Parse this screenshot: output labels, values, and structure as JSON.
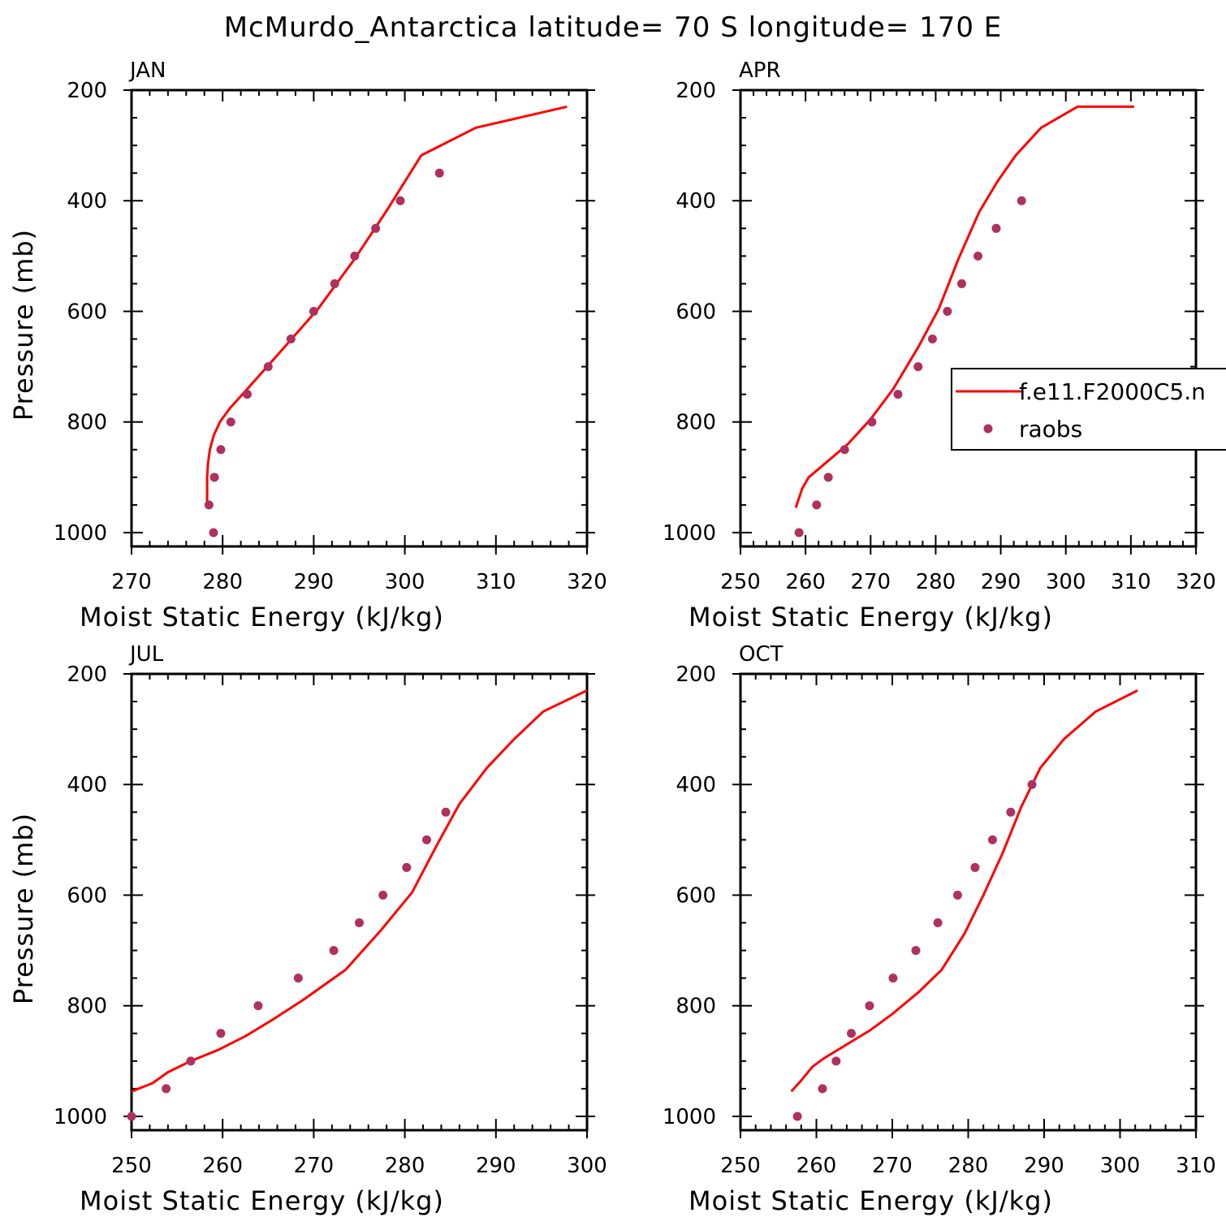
{
  "title": "McMurdo_Antarctica  latitude= 70 S longitude= 170 E",
  "colors": {
    "model": "#ff0000",
    "obs": "#b03060",
    "axis": "#000000"
  },
  "legend": {
    "entries": [
      {
        "label": "f.e11.F2000C5.n",
        "style": "line",
        "color": "#ff0000"
      },
      {
        "label": "raobs",
        "style": "dot",
        "color": "#b03060"
      }
    ],
    "placement": "right, inside APR panel (clipped at figure edge)"
  },
  "chart_data": [
    {
      "type": "line",
      "panel": "JAN",
      "xlabel": "Moist Static Energy (kJ/kg)",
      "ylabel": "Pressure (mb)",
      "xlim": [
        270,
        320
      ],
      "ylim": [
        1025,
        200
      ],
      "xticks": [
        270,
        280,
        290,
        300,
        310,
        320
      ],
      "yticks": [
        200,
        400,
        600,
        800,
        1000
      ],
      "series": [
        {
          "name": "f.e11.F2000C5.n",
          "style": "line",
          "x": [
            278.3,
            278.3,
            278.4,
            278.6,
            279.0,
            279.7,
            280.8,
            283.0,
            286.5,
            290.5,
            294.5,
            298.0,
            301.8,
            307.8,
            317.8
          ],
          "y": [
            950,
            900,
            875,
            850,
            825,
            800,
            775,
            735,
            670,
            595,
            505,
            418,
            318,
            268,
            230
          ]
        },
        {
          "name": "raobs",
          "style": "points",
          "x": [
            279.0,
            278.5,
            279.1,
            279.8,
            280.9,
            282.7,
            285.0,
            287.5,
            290.0,
            292.3,
            294.5,
            296.8,
            299.5,
            303.8
          ],
          "y": [
            1000,
            950,
            900,
            850,
            800,
            750,
            700,
            650,
            600,
            550,
            500,
            450,
            400,
            350
          ]
        }
      ]
    },
    {
      "type": "line",
      "panel": "APR",
      "xlabel": "Moist Static Energy (kJ/kg)",
      "ylabel": "",
      "xlim": [
        250,
        320
      ],
      "ylim": [
        1025,
        200
      ],
      "xticks": [
        250,
        260,
        270,
        280,
        290,
        300,
        310,
        320
      ],
      "yticks": [
        200,
        400,
        600,
        800,
        1000
      ],
      "series": [
        {
          "name": "f.e11.F2000C5.n",
          "style": "line",
          "x": [
            258.5,
            259.5,
            260.5,
            263.0,
            266.5,
            270.0,
            273.5,
            277.3,
            280.5,
            283.5,
            286.7,
            289.5,
            292.3,
            296.2,
            301.8,
            310.5
          ],
          "y": [
            955,
            920,
            900,
            875,
            840,
            795,
            740,
            665,
            595,
            505,
            420,
            365,
            318,
            268,
            230,
            230
          ]
        },
        {
          "name": "raobs",
          "style": "points",
          "x": [
            259.0,
            261.7,
            263.5,
            266.0,
            270.2,
            274.2,
            277.3,
            279.5,
            281.8,
            284.0,
            286.5,
            289.3,
            293.2
          ],
          "y": [
            1000,
            950,
            900,
            850,
            800,
            750,
            700,
            650,
            600,
            550,
            500,
            450,
            400
          ]
        }
      ]
    },
    {
      "type": "line",
      "panel": "JUL",
      "xlabel": "Moist Static Energy (kJ/kg)",
      "ylabel": "Pressure (mb)",
      "xlim": [
        250,
        300
      ],
      "ylim": [
        1025,
        200
      ],
      "xticks": [
        250,
        260,
        270,
        280,
        290,
        300
      ],
      "yticks": [
        200,
        400,
        600,
        800,
        1000
      ],
      "series": [
        {
          "name": "f.e11.F2000C5.n",
          "style": "line",
          "x": [
            250.0,
            252.3,
            254.0,
            256.5,
            259.5,
            262.5,
            265.5,
            268.8,
            273.5,
            277.3,
            280.8,
            283.5,
            286.0,
            289.0,
            292.0,
            295.2,
            300.0
          ],
          "y": [
            955,
            940,
            920,
            900,
            880,
            855,
            825,
            790,
            735,
            665,
            595,
            510,
            435,
            370,
            318,
            268,
            230
          ]
        },
        {
          "name": "raobs",
          "style": "points",
          "x": [
            250.0,
            253.8,
            256.5,
            259.8,
            263.9,
            268.3,
            272.2,
            275.0,
            277.6,
            280.2,
            282.4,
            284.5
          ],
          "y": [
            1000,
            950,
            900,
            850,
            800,
            750,
            700,
            650,
            600,
            550,
            500,
            450
          ]
        }
      ]
    },
    {
      "type": "line",
      "panel": "OCT",
      "xlabel": "Moist Static Energy (kJ/kg)",
      "ylabel": "",
      "xlim": [
        250,
        310
      ],
      "ylim": [
        1025,
        200
      ],
      "xticks": [
        250,
        260,
        270,
        280,
        290,
        300,
        310
      ],
      "yticks": [
        200,
        400,
        600,
        800,
        1000
      ],
      "series": [
        {
          "name": "f.e11.F2000C5.n",
          "style": "line",
          "x": [
            256.7,
            258.0,
            259.5,
            261.0,
            264.0,
            267.0,
            270.0,
            273.5,
            276.5,
            279.5,
            282.0,
            284.5,
            287.0,
            289.5,
            292.6,
            296.8,
            302.3
          ],
          "y": [
            955,
            935,
            910,
            895,
            870,
            845,
            815,
            775,
            735,
            670,
            600,
            525,
            440,
            370,
            318,
            268,
            230
          ]
        },
        {
          "name": "raobs",
          "style": "points",
          "x": [
            257.5,
            260.8,
            262.6,
            264.6,
            267.0,
            270.1,
            273.1,
            276.0,
            278.6,
            280.9,
            283.2,
            285.6,
            288.4
          ],
          "y": [
            1000,
            950,
            900,
            850,
            800,
            750,
            700,
            650,
            600,
            550,
            500,
            450,
            400
          ]
        }
      ]
    }
  ]
}
